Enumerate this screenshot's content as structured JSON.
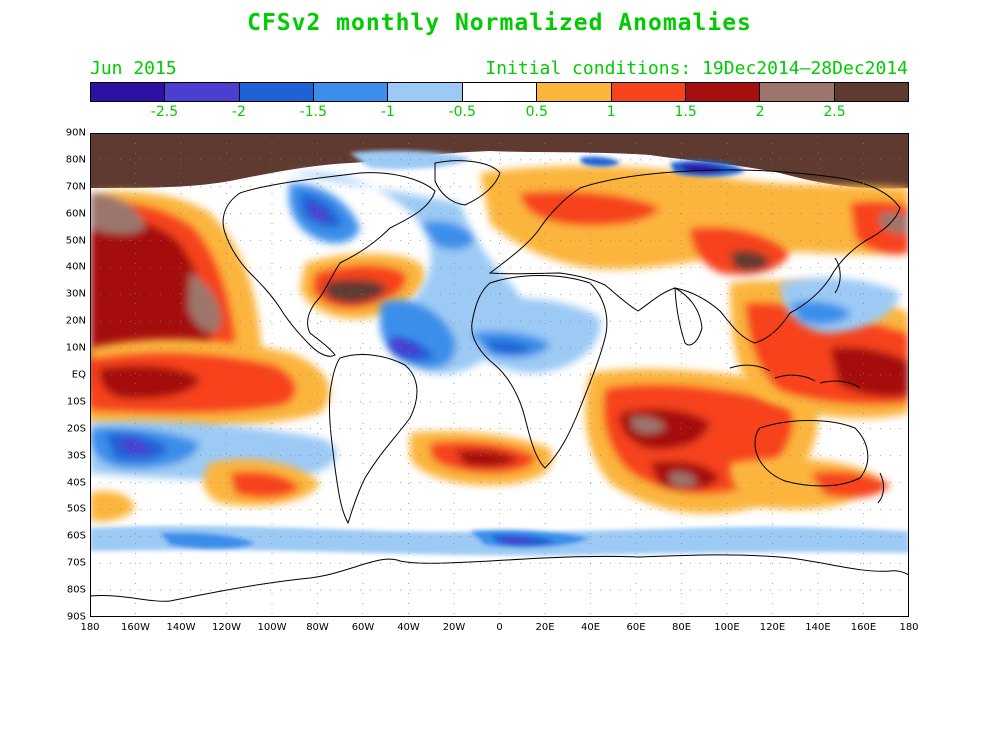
{
  "title": "CFSv2 monthly Normalized Anomalies",
  "valid_month": "Jun 2015",
  "initial_conditions": "Initial conditions: 19Dec2014–28Dec2014",
  "text_color": "#00cc00",
  "colorbar": {
    "colors": [
      "#2d11a3",
      "#4a3fd0",
      "#1f62d6",
      "#3b8fea",
      "#9ccaf5",
      "#ffffff",
      "#fbb53c",
      "#f7431b",
      "#a50f0f",
      "#9c766c",
      "#5f3a30"
    ],
    "labels": [
      "-2.5",
      "-2",
      "-1.5",
      "-1",
      "-0.5",
      "0.5",
      "1",
      "1.5",
      "2",
      "2.5"
    ]
  },
  "map": {
    "lat_labels": [
      "90N",
      "80N",
      "70N",
      "60N",
      "50N",
      "40N",
      "30N",
      "20N",
      "10N",
      "EQ",
      "10S",
      "20S",
      "30S",
      "40S",
      "50S",
      "60S",
      "70S",
      "80S",
      "90S"
    ],
    "lon_labels": [
      "180",
      "160W",
      "140W",
      "120W",
      "100W",
      "80W",
      "60W",
      "40W",
      "20W",
      "0",
      "20E",
      "40E",
      "60E",
      "80E",
      "100E",
      "120E",
      "140E",
      "160E",
      "180"
    ],
    "gridlines": "dotted"
  }
}
